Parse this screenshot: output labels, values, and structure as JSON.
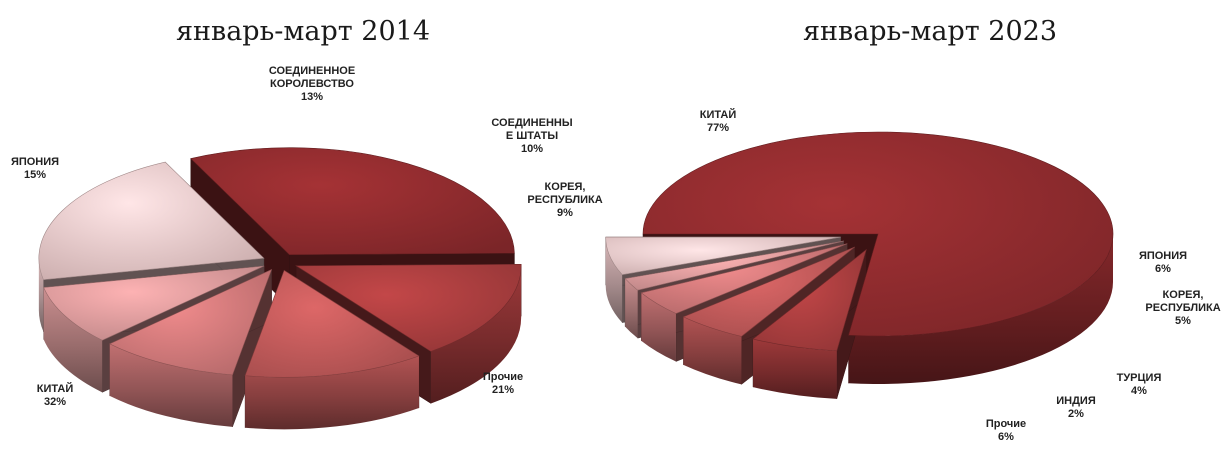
{
  "chart_data": [
    {
      "type": "pie",
      "title": "январь-март 2014",
      "series": [
        {
          "name": "",
          "categories": [
            "КИТАЙ",
            "ЯПОНИЯ",
            "СОЕДИНЕННОЕ КОРОЛЕВСТВО",
            "СОЕДИНЕННЫЕ ШТАТЫ",
            "КОРЕЯ, РЕСПУБЛИКА",
            "Прочие"
          ]
        }
      ],
      "slices": [
        {
          "label_lines": [
            "КИТАЙ"
          ],
          "value": 32,
          "value_text": "32%",
          "color": "#8c2a2d"
        },
        {
          "label_lines": [
            "ЯПОНИЯ"
          ],
          "value": 15,
          "value_text": "15%",
          "color": "#a53c3d"
        },
        {
          "label_lines": [
            "СОЕДИНЕННОЕ",
            "КОРОЛЕВСТВО"
          ],
          "value": 13,
          "value_text": "13%",
          "color": "#bb5757"
        },
        {
          "label_lines": [
            "СОЕДИНЕННЫ",
            "Е ШТАТЫ"
          ],
          "value": 10,
          "value_text": "10%",
          "color": "#cb7677"
        },
        {
          "label_lines": [
            "КОРЕЯ,",
            "РЕСПУБЛИКА"
          ],
          "value": 9,
          "value_text": "9%",
          "color": "#d69798"
        },
        {
          "label_lines": [
            "Прочие"
          ],
          "value": 21,
          "value_text": "21%",
          "color": "#e6c3c4"
        }
      ]
    },
    {
      "type": "pie",
      "title": "январь-март 2023",
      "series": [
        {
          "name": "",
          "categories": [
            "КИТАЙ",
            "ЯПОНИЯ",
            "КОРЕЯ, РЕСПУБЛИКА",
            "ТУРЦИЯ",
            "ИНДИЯ",
            "Прочие"
          ]
        }
      ],
      "slices": [
        {
          "label_lines": [
            "КИТАЙ"
          ],
          "value": 77,
          "value_text": "77%",
          "color": "#8c2a2d"
        },
        {
          "label_lines": [
            "ЯПОНИЯ"
          ],
          "value": 6,
          "value_text": "6%",
          "color": "#a53c3d"
        },
        {
          "label_lines": [
            "КОРЕЯ,",
            "РЕСПУБЛИКА"
          ],
          "value": 5,
          "value_text": "5%",
          "color": "#bb5757"
        },
        {
          "label_lines": [
            "ТУРЦИЯ"
          ],
          "value": 4,
          "value_text": "4%",
          "color": "#cb7677"
        },
        {
          "label_lines": [
            "ИНДИЯ"
          ],
          "value": 2,
          "value_text": "2%",
          "color": "#d69798"
        },
        {
          "label_lines": [
            "Прочие"
          ],
          "value": 6,
          "value_text": "6%",
          "color": "#e6c3c4"
        }
      ]
    }
  ]
}
